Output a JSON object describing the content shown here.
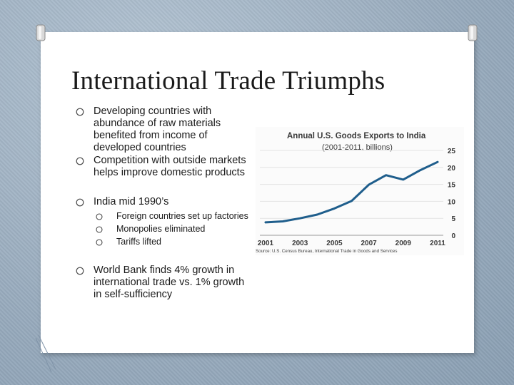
{
  "slide": {
    "title": "International Trade Triumphs",
    "bullets": [
      {
        "text": "Developing countries with abundance of raw materials benefited from income of developed countries"
      },
      {
        "text": "Competition with outside markets helps improve domestic products"
      },
      {
        "text": "India mid 1990’s",
        "subitems": [
          {
            "text": "Foreign countries set up factories"
          },
          {
            "text": "Monopolies eliminated"
          },
          {
            "text": "Tariffs lifted"
          }
        ]
      },
      {
        "text": "World Bank finds 4% growth in international trade vs. 1% growth in self-sufficiency"
      }
    ]
  },
  "chart_data": {
    "type": "line",
    "title": "Annual U.S. Goods Exports to India",
    "subtitle": "(2001-2011, billions)",
    "source": "Source: U.S. Census Bureau, International Trade in Goods and Services",
    "x": [
      2001,
      2002,
      2003,
      2004,
      2005,
      2006,
      2007,
      2008,
      2009,
      2010,
      2011
    ],
    "values": [
      3.8,
      4.1,
      5.0,
      6.1,
      7.9,
      10.1,
      14.9,
      17.7,
      16.4,
      19.2,
      21.6
    ],
    "x_tick_labels": [
      "2001",
      "2003",
      "2005",
      "2007",
      "2009",
      "2011"
    ],
    "y_ticks": [
      0,
      5,
      10,
      15,
      20,
      25
    ],
    "ylim": [
      0,
      25
    ],
    "y_axis_side": "right",
    "line_color": "#1f5e8c"
  }
}
